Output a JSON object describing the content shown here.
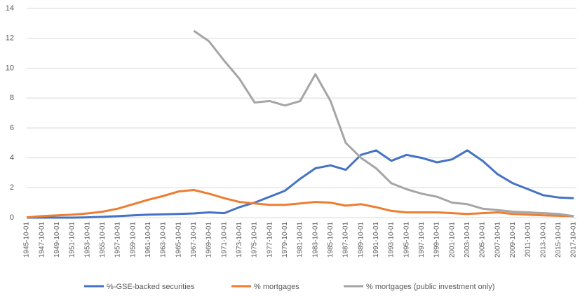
{
  "chart_data": {
    "type": "line",
    "categories": [
      "1945-10-01",
      "1947-10-01",
      "1949-10-01",
      "1951-10-01",
      "1953-10-01",
      "1955-10-01",
      "1957-10-01",
      "1959-10-01",
      "1961-10-01",
      "1963-10-01",
      "1965-10-01",
      "1967-10-01",
      "1969-10-01",
      "1971-10-01",
      "1973-10-01",
      "1975-10-01",
      "1977-10-01",
      "1979-10-01",
      "1981-10-01",
      "1983-10-01",
      "1985-10-01",
      "1987-10-01",
      "1989-10-01",
      "1991-10-01",
      "1993-10-01",
      "1995-10-01",
      "1997-10-01",
      "1999-10-01",
      "2001-10-01",
      "2003-10-01",
      "2005-10-01",
      "2007-10-01",
      "2009-10-01",
      "2011-10-01",
      "2013-10-01",
      "2015-10-01",
      "2017-10-01"
    ],
    "series": [
      {
        "name": "%-GSE-backed securities",
        "color": "#4472c4",
        "values": [
          0,
          0,
          0,
          0,
          0.02,
          0.05,
          0.1,
          0.15,
          0.2,
          0.22,
          0.25,
          0.28,
          0.35,
          0.3,
          0.7,
          1.0,
          1.4,
          1.8,
          2.6,
          3.3,
          3.5,
          3.2,
          4.2,
          4.5,
          3.8,
          4.2,
          4.0,
          3.7,
          3.9,
          4.5,
          3.8,
          2.9,
          2.3,
          1.9,
          1.5,
          1.35,
          1.3
        ]
      },
      {
        "name": "% mortgages",
        "color": "#ed7d31",
        "values": [
          0.02,
          0.1,
          0.15,
          0.2,
          0.28,
          0.4,
          0.6,
          0.9,
          1.2,
          1.45,
          1.75,
          1.85,
          1.6,
          1.3,
          1.05,
          0.95,
          0.85,
          0.85,
          0.95,
          1.05,
          1.0,
          0.8,
          0.9,
          0.7,
          0.45,
          0.35,
          0.35,
          0.35,
          0.3,
          0.25,
          0.3,
          0.35,
          0.25,
          0.2,
          0.15,
          0.12,
          0.1
        ]
      },
      {
        "name": "% mortgages (public investment only)",
        "color": "#a5a5a5",
        "values": [
          null,
          null,
          null,
          null,
          null,
          null,
          null,
          null,
          null,
          null,
          null,
          12.5,
          11.8,
          10.5,
          9.3,
          7.7,
          7.8,
          7.5,
          7.8,
          9.6,
          7.8,
          5.0,
          4.0,
          3.3,
          2.3,
          1.9,
          1.6,
          1.4,
          1.0,
          0.9,
          0.6,
          0.5,
          0.4,
          0.35,
          0.3,
          0.25,
          0.1
        ]
      }
    ],
    "ylim": [
      0,
      14
    ],
    "yticks": [
      0,
      2,
      4,
      6,
      8,
      10,
      12,
      14
    ],
    "grid": true,
    "legend": "bottom"
  }
}
